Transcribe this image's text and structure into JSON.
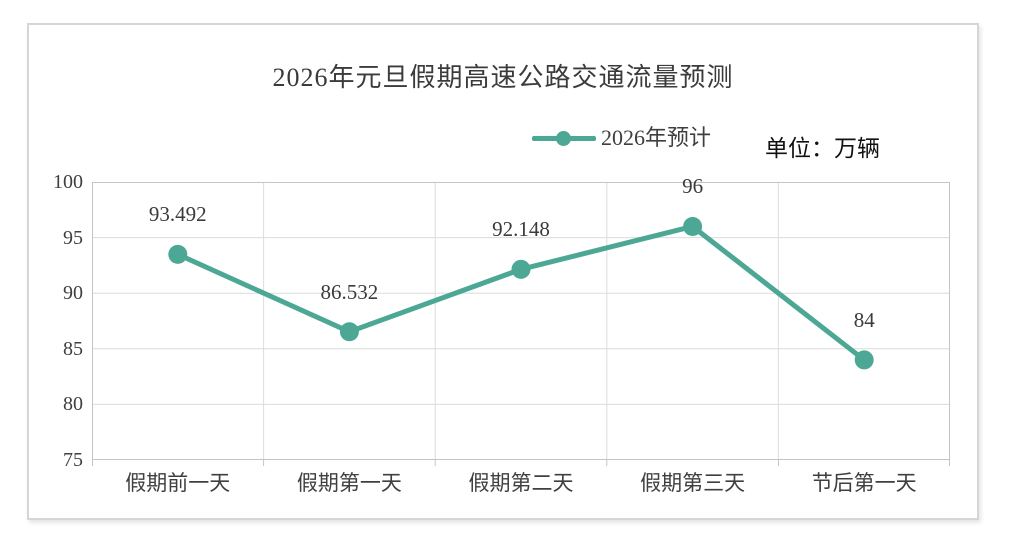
{
  "title": "2026年元旦假期高速公路交通流量预测",
  "legend": {
    "label": "2026年预计"
  },
  "unit_label": "单位：万辆",
  "colors": {
    "line": "#4CA794",
    "grid": "#dcdcdc",
    "axis_border": "#c4c4c4",
    "tick": "#c4c4c4",
    "label_text": "#3f3f3f",
    "title_text": "#3b3b3b",
    "unit_text": "#111111",
    "card_border": "#d6d6d6"
  },
  "chart_data": {
    "type": "line",
    "title": "2026年元旦假期高速公路交通流量预测",
    "categories": [
      "假期前一天",
      "假期第一天",
      "假期第二天",
      "假期第三天",
      "节后第一天"
    ],
    "series": [
      {
        "name": "2026年预计",
        "values": [
          93.492,
          86.532,
          92.148,
          96,
          84
        ]
      }
    ],
    "data_labels": [
      "93.492",
      "86.532",
      "92.148",
      "96",
      "84"
    ],
    "unit": "万辆",
    "ylim": [
      75,
      100
    ],
    "yticks": [
      75,
      80,
      85,
      90,
      95,
      100
    ],
    "grid": true,
    "legend_position": "top-center",
    "marker": "circle"
  }
}
